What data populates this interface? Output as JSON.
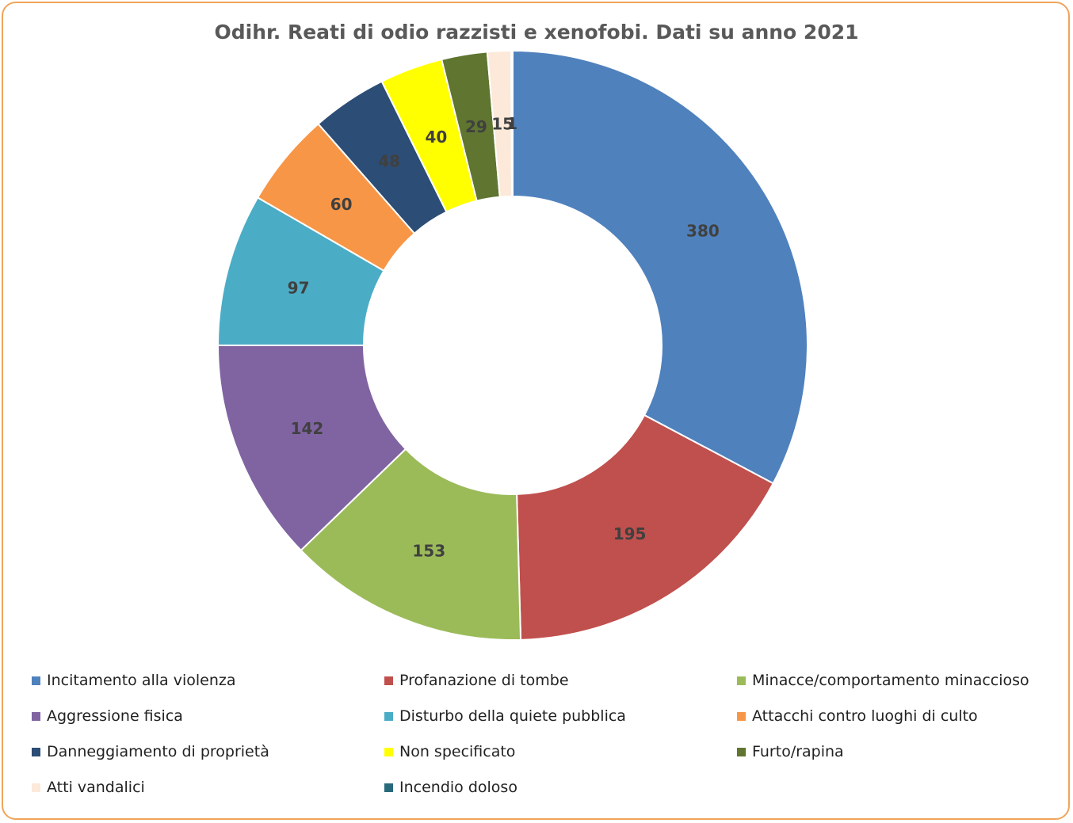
{
  "chart_data": {
    "type": "pie",
    "variant": "donut",
    "title": "Odihr. Reati di odio razzisti  e xenofobi. Dati su anno 2021",
    "legend_position": "bottom",
    "slices": [
      {
        "label": "Incitamento alla violenza",
        "value": 380,
        "color": "#4f81bd",
        "value_label": "380"
      },
      {
        "label": "Profanazione di tombe",
        "value": 195,
        "color": "#c0504d",
        "value_label": "195"
      },
      {
        "label": "Minacce/comportamento minaccioso",
        "value": 153,
        "color": "#9bbb59",
        "value_label": "153"
      },
      {
        "label": "Aggressione fisica",
        "value": 142,
        "color": "#8064a2",
        "value_label": "142"
      },
      {
        "label": "Disturbo della quiete pubblica",
        "value": 97,
        "color": "#4bacc6",
        "value_label": "97"
      },
      {
        "label": "Attacchi contro luoghi di culto",
        "value": 60,
        "color": "#f79646",
        "value_label": "60"
      },
      {
        "label": "Danneggiamento di proprietà",
        "value": 48,
        "color": "#2c4d75",
        "value_label": "48"
      },
      {
        "label": "Non specificato",
        "value": 40,
        "color": "#ffff00",
        "value_label": "40"
      },
      {
        "label": "Furto/rapina",
        "value": 29,
        "color": "#5f7530",
        "value_label": "29"
      },
      {
        "label": "Atti vandalici",
        "value": 15,
        "color": "#fde9d9",
        "value_label": "15"
      },
      {
        "label": "Incendio doloso",
        "value": 1,
        "color": "#276a7c",
        "value_label": "1"
      }
    ]
  }
}
